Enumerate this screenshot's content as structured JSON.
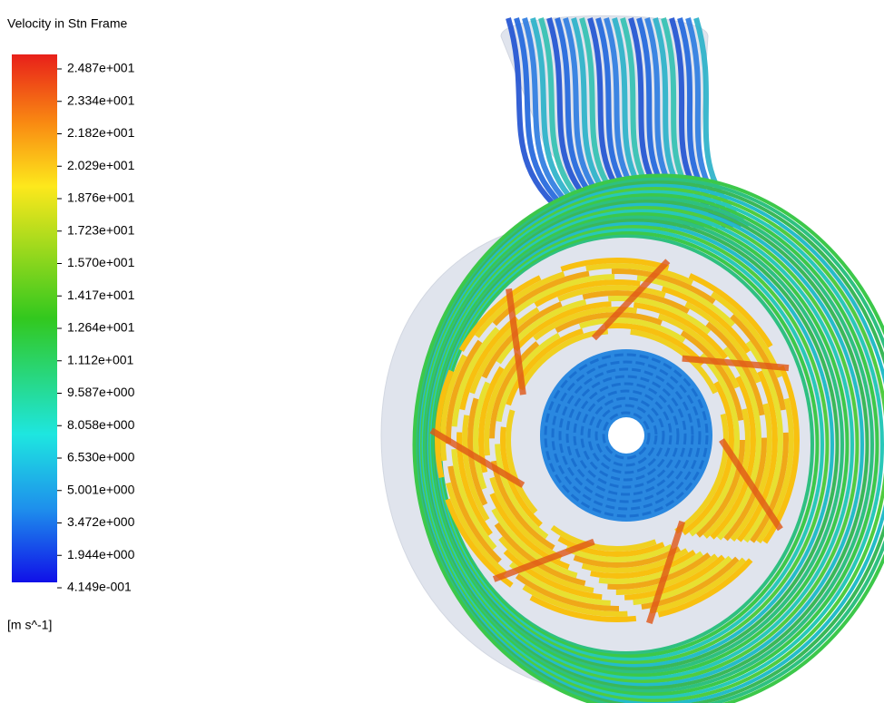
{
  "legend": {
    "title": "Velocity in Stn Frame",
    "labels": [
      "2.487e+001",
      "2.334e+001",
      "2.182e+001",
      "2.029e+001",
      "1.876e+001",
      "1.723e+001",
      "1.570e+001",
      "1.417e+001",
      "1.264e+001",
      "1.112e+001",
      "9.587e+000",
      "8.058e+000",
      "6.530e+000",
      "5.001e+000",
      "3.472e+000",
      "1.944e+000",
      "4.149e-001"
    ],
    "unit": "[m s^-1]"
  }
}
